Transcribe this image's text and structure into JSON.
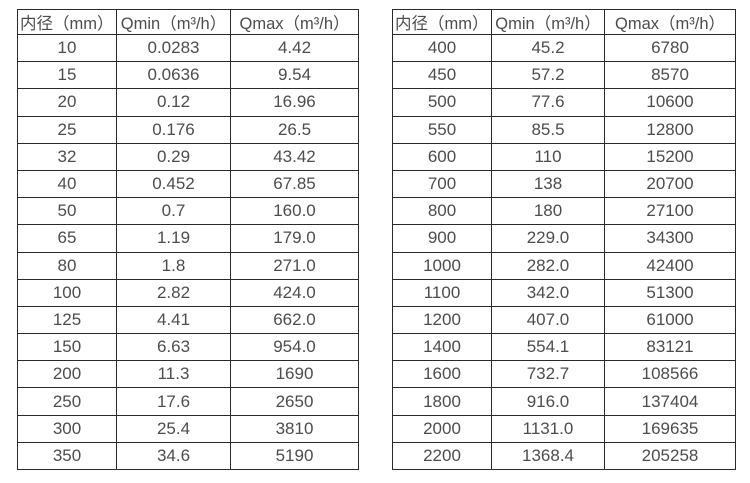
{
  "tables": [
    {
      "name": "flow-spec-table-small-diameters",
      "headers": [
        "内径（mm）",
        "Qmin（m³/h）",
        "Qmax（m³/h）"
      ],
      "rows": [
        [
          "10",
          "0.0283",
          "4.42"
        ],
        [
          "15",
          "0.0636",
          "9.54"
        ],
        [
          "20",
          "0.12",
          "16.96"
        ],
        [
          "25",
          "0.176",
          "26.5"
        ],
        [
          "32",
          "0.29",
          "43.42"
        ],
        [
          "40",
          "0.452",
          "67.85"
        ],
        [
          "50",
          "0.7",
          "160.0"
        ],
        [
          "65",
          "1.19",
          "179.0"
        ],
        [
          "80",
          "1.8",
          "271.0"
        ],
        [
          "100",
          "2.82",
          "424.0"
        ],
        [
          "125",
          "4.41",
          "662.0"
        ],
        [
          "150",
          "6.63",
          "954.0"
        ],
        [
          "200",
          "11.3",
          "1690"
        ],
        [
          "250",
          "17.6",
          "2650"
        ],
        [
          "300",
          "25.4",
          "3810"
        ],
        [
          "350",
          "34.6",
          "5190"
        ]
      ]
    },
    {
      "name": "flow-spec-table-large-diameters",
      "headers": [
        "内径（mm）",
        "Qmin（m³/h）",
        "Qmax（m³/h）"
      ],
      "rows": [
        [
          "400",
          "45.2",
          "6780"
        ],
        [
          "450",
          "57.2",
          "8570"
        ],
        [
          "500",
          "77.6",
          "10600"
        ],
        [
          "550",
          "85.5",
          "12800"
        ],
        [
          "600",
          "110",
          "15200"
        ],
        [
          "700",
          "138",
          "20700"
        ],
        [
          "800",
          "180",
          "27100"
        ],
        [
          "900",
          "229.0",
          "34300"
        ],
        [
          "1000",
          "282.0",
          "42400"
        ],
        [
          "1100",
          "342.0",
          "51300"
        ],
        [
          "1200",
          "407.0",
          "61000"
        ],
        [
          "1400",
          "554.1",
          "83121"
        ],
        [
          "1600",
          "732.7",
          "108566"
        ],
        [
          "1800",
          "916.0",
          "137404"
        ],
        [
          "2000",
          "1131.0",
          "169635"
        ],
        [
          "2200",
          "1368.4",
          "205258"
        ]
      ]
    }
  ],
  "colors": {
    "text": "#4d4d4d",
    "border": "#2a2a2a",
    "background": "#ffffff"
  }
}
